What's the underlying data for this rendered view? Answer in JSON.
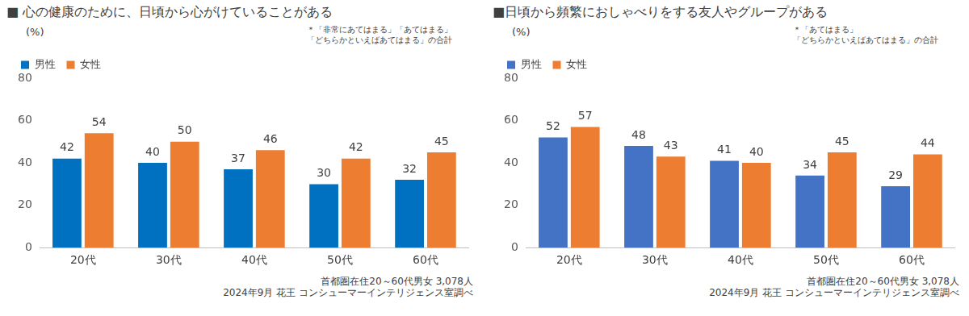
{
  "chart_data": [
    {
      "type": "bar",
      "title": "■ 心の健康のために、日頃から心がけていることがある",
      "y_label": "(%)",
      "annotation": [
        "＊「非常にあてはまる」「あてはまる」",
        "「どちらかといえばあてはまる」の合計"
      ],
      "source": [
        "首都圏在住20～60代男女  3,078人",
        "2024年9月  花王 コンシューマーインテリジェンス室調べ"
      ],
      "categories": [
        "20代",
        "30代",
        "40代",
        "50代",
        "60代"
      ],
      "series": [
        {
          "name": "男性",
          "color": "#0070c0",
          "values": [
            42,
            40,
            37,
            30,
            32
          ]
        },
        {
          "name": "女性",
          "color": "#ed7d31",
          "values": [
            54,
            50,
            46,
            42,
            45
          ]
        }
      ],
      "ylim": [
        0,
        80
      ],
      "yticks": [
        0,
        20,
        40,
        60,
        80
      ],
      "grid": false,
      "legend": "top-left",
      "data_labels": true
    },
    {
      "type": "bar",
      "title": "■日頃から頻繁におしゃべりをする友人やグループがある",
      "y_label": "(%)",
      "annotation": [
        "＊「あてはまる」",
        "「どちらかといえばあてはまる」の合計"
      ],
      "source": [
        "首都圏在住20～60代男女  3,078人",
        "2024年9月  花王 コンシューマーインテリジェンス室調べ"
      ],
      "categories": [
        "20代",
        "30代",
        "40代",
        "50代",
        "60代"
      ],
      "series": [
        {
          "name": "男性",
          "color": "#4472c4",
          "values": [
            52,
            48,
            41,
            34,
            29
          ]
        },
        {
          "name": "女性",
          "color": "#ed7d31",
          "values": [
            57,
            43,
            40,
            45,
            44
          ]
        }
      ],
      "ylim": [
        0,
        80
      ],
      "yticks": [
        0,
        20,
        40,
        60,
        80
      ],
      "grid": false,
      "legend": "top-left",
      "data_labels": true
    }
  ]
}
